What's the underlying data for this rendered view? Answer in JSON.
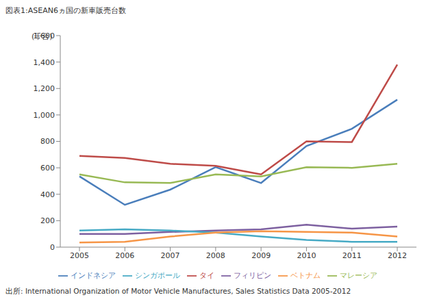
{
  "chart_data": {
    "type": "line",
    "title": "図表1:ASEAN6ヵ国の新車販売台数",
    "y_label": "(千台)",
    "source": "出所: International Organization of Motor Vehicle Manufactures, Sales Statistics Data 2005-2012",
    "categories": [
      "2005",
      "2006",
      "2007",
      "2008",
      "2009",
      "2010",
      "2011",
      "2012"
    ],
    "series": [
      {
        "name": "インドネシア",
        "color": "#4a7ebb",
        "values": [
          535,
          320,
          435,
          605,
          485,
          765,
          895,
          1115
        ]
      },
      {
        "name": "タイ",
        "color": "#be4b48",
        "values": [
          690,
          675,
          630,
          615,
          550,
          800,
          795,
          1380
        ]
      },
      {
        "name": "マレーシア",
        "color": "#98b954",
        "values": [
          550,
          490,
          485,
          550,
          535,
          605,
          600,
          630
        ]
      },
      {
        "name": "フィリピン",
        "color": "#7d60a0",
        "values": [
          100,
          100,
          115,
          125,
          135,
          170,
          140,
          155
        ]
      },
      {
        "name": "シンガポール",
        "color": "#46aac5",
        "values": [
          125,
          135,
          125,
          110,
          80,
          55,
          40,
          40
        ]
      },
      {
        "name": "ベトナム",
        "color": "#f69546",
        "values": [
          35,
          40,
          80,
          110,
          120,
          115,
          110,
          80
        ]
      }
    ],
    "ylim": [
      0,
      1600
    ],
    "yticks": [
      0,
      200,
      400,
      600,
      800,
      {
        "value": 1000,
        "label": "1,000"
      },
      {
        "value": 1200,
        "label": "1,200"
      },
      {
        "value": 1400,
        "label": "1,400"
      },
      {
        "value": 1600,
        "label": "1,600"
      }
    ],
    "grid": false,
    "legend": "bottom"
  }
}
